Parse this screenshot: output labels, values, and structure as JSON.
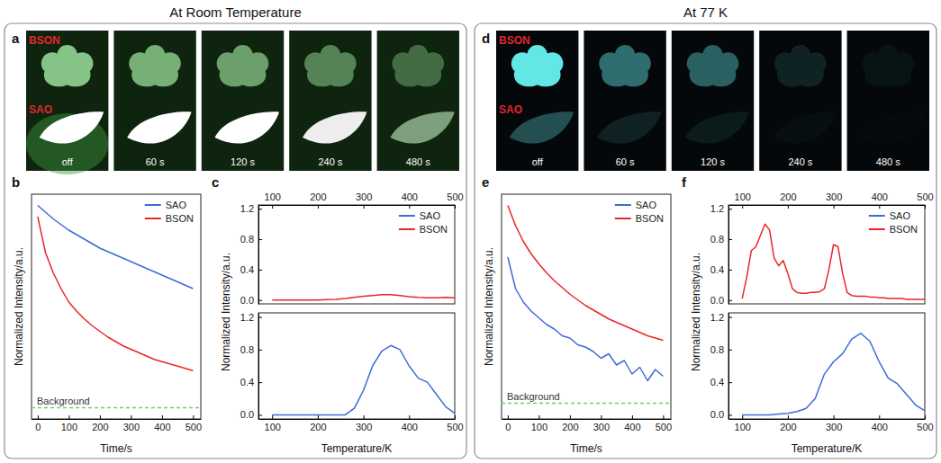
{
  "sections": [
    {
      "title": "At Room Temperature",
      "photo": {
        "panel": "a",
        "samples": [
          "BSON",
          "SAO"
        ],
        "frames": [
          "off",
          "60 s",
          "120 s",
          "240 s",
          "480 s"
        ]
      }
    },
    {
      "title": "At 77 K",
      "photo": {
        "panel": "d",
        "samples": [
          "BSON",
          "SAO"
        ],
        "frames": [
          "off",
          "60 s",
          "120 s",
          "240 s",
          "480 s"
        ]
      }
    }
  ],
  "chart_data": [
    {
      "panel": "b",
      "type": "line",
      "xlabel": "Time/s",
      "ylabel": "Normalized Intensity/a.u.",
      "xlim": [
        -20,
        525
      ],
      "xticks": [
        0,
        100,
        200,
        300,
        400,
        500
      ],
      "ylim": [
        0,
        1
      ],
      "tick_labels": "x",
      "legend": "upper right",
      "reference_lines": [
        {
          "label": "Background",
          "value": 0.05,
          "color": "#7cc576",
          "line_style": "dashed"
        }
      ],
      "series": [
        {
          "name": "SAO",
          "color": "#3d6bd8",
          "x": [
            0,
            25,
            50,
            75,
            100,
            125,
            150,
            175,
            200,
            225,
            250,
            275,
            300,
            325,
            350,
            375,
            400,
            425,
            450,
            475,
            500
          ],
          "values": [
            0.95,
            0.92,
            0.89,
            0.865,
            0.84,
            0.82,
            0.8,
            0.78,
            0.76,
            0.745,
            0.73,
            0.715,
            0.7,
            0.685,
            0.67,
            0.655,
            0.64,
            0.625,
            0.61,
            0.595,
            0.58
          ]
        },
        {
          "name": "BSON",
          "color": "#e8262b",
          "x": [
            0,
            25,
            50,
            75,
            100,
            125,
            150,
            175,
            200,
            225,
            250,
            275,
            300,
            325,
            350,
            375,
            400,
            425,
            450,
            475,
            500
          ],
          "values": [
            0.9,
            0.74,
            0.65,
            0.58,
            0.52,
            0.48,
            0.445,
            0.415,
            0.39,
            0.365,
            0.345,
            0.325,
            0.31,
            0.295,
            0.28,
            0.265,
            0.255,
            0.245,
            0.235,
            0.225,
            0.215
          ]
        }
      ]
    },
    {
      "panel": "c",
      "type": "line",
      "xlabel": "Temperature/K",
      "ylabel": "Normalized Intensity/a.u.",
      "xlim": [
        70,
        500
      ],
      "xticks": [
        100,
        200,
        300,
        400,
        500
      ],
      "ylim": [
        -0.05,
        1.25
      ],
      "yticks": [
        {
          "value": 0,
          "label": "0.0"
        },
        {
          "value": 0.4,
          "label": "0.4"
        },
        {
          "value": 0.8,
          "label": "0.8"
        },
        {
          "value": 1.2,
          "label": "1.2"
        }
      ],
      "y2lim": [
        -0.05,
        1.25
      ],
      "y2ticks": [
        {
          "value": 0,
          "label": "0.0"
        },
        {
          "value": 0.4,
          "label": "0.4"
        },
        {
          "value": 0.8,
          "label": "0.8"
        },
        {
          "value": 1.2,
          "label": "1.2"
        }
      ],
      "legend": "upper right",
      "series": [
        {
          "name": "SAO",
          "color": "#3d6bd8",
          "x": [
            100,
            120,
            140,
            160,
            180,
            200,
            220,
            240,
            260,
            280,
            300,
            320,
            340,
            360,
            380,
            400,
            420,
            440,
            460,
            480,
            500
          ],
          "values": [
            0,
            0,
            0,
            0,
            0,
            0,
            0,
            0,
            0,
            0.08,
            0.3,
            0.6,
            0.78,
            0.85,
            0.8,
            0.6,
            0.45,
            0.4,
            0.25,
            0.1,
            0.02
          ]
        },
        {
          "name": "BSON",
          "color": "#e8262b",
          "axis": "y2",
          "x": [
            100,
            120,
            140,
            160,
            180,
            200,
            220,
            240,
            260,
            280,
            300,
            320,
            340,
            360,
            380,
            400,
            420,
            440,
            460,
            480,
            500
          ],
          "values": [
            0,
            0,
            0,
            0,
            0,
            0,
            0.005,
            0.01,
            0.02,
            0.035,
            0.05,
            0.06,
            0.07,
            0.07,
            0.06,
            0.045,
            0.035,
            0.03,
            0.03,
            0.035,
            0.03
          ]
        }
      ]
    },
    {
      "panel": "e",
      "type": "line",
      "xlabel": "Time/s",
      "ylabel": "Normalized Intensity/a.u.",
      "xlim": [
        -20,
        525
      ],
      "xticks": [
        0,
        100,
        200,
        300,
        400,
        500
      ],
      "ylim": [
        0,
        1
      ],
      "tick_labels": "x",
      "legend": "upper right",
      "reference_lines": [
        {
          "label": "Background",
          "value": 0.07,
          "color": "#7cc576",
          "line_style": "dashed"
        }
      ],
      "series": [
        {
          "name": "SAO",
          "color": "#3d6bd8",
          "x": [
            0,
            25,
            50,
            75,
            100,
            125,
            150,
            175,
            200,
            225,
            250,
            275,
            300,
            325,
            350,
            375,
            400,
            425,
            450,
            475,
            500
          ],
          "values": [
            0.72,
            0.58,
            0.52,
            0.48,
            0.45,
            0.42,
            0.4,
            0.37,
            0.36,
            0.33,
            0.32,
            0.3,
            0.27,
            0.29,
            0.24,
            0.26,
            0.2,
            0.23,
            0.17,
            0.22,
            0.19
          ]
        },
        {
          "name": "BSON",
          "color": "#e8262b",
          "x": [
            0,
            25,
            50,
            75,
            100,
            125,
            150,
            175,
            200,
            225,
            250,
            275,
            300,
            325,
            350,
            375,
            400,
            425,
            450,
            475,
            500
          ],
          "values": [
            0.95,
            0.86,
            0.79,
            0.735,
            0.69,
            0.65,
            0.615,
            0.585,
            0.555,
            0.53,
            0.505,
            0.485,
            0.465,
            0.445,
            0.43,
            0.415,
            0.4,
            0.385,
            0.37,
            0.36,
            0.35
          ]
        }
      ]
    },
    {
      "panel": "f",
      "type": "line",
      "xlabel": "Temperature/K",
      "ylabel": "Normalized Intensity/a.u.",
      "xlim": [
        70,
        500
      ],
      "xticks": [
        100,
        200,
        300,
        400,
        500
      ],
      "ylim": [
        -0.05,
        1.25
      ],
      "yticks": [
        {
          "value": 0,
          "label": "0.0"
        },
        {
          "value": 0.4,
          "label": "0.4"
        },
        {
          "value": 0.8,
          "label": "0.8"
        },
        {
          "value": 1.2,
          "label": "1.2"
        }
      ],
      "y2lim": [
        -0.05,
        1.25
      ],
      "y2ticks": [
        {
          "value": 0,
          "label": "0.0"
        },
        {
          "value": 0.4,
          "label": "0.4"
        },
        {
          "value": 0.8,
          "label": "0.8"
        },
        {
          "value": 1.2,
          "label": "1.2"
        }
      ],
      "legend": "upper right",
      "series": [
        {
          "name": "SAO",
          "color": "#3d6bd8",
          "x": [
            100,
            120,
            140,
            160,
            180,
            200,
            220,
            240,
            260,
            280,
            300,
            320,
            340,
            360,
            380,
            400,
            420,
            440,
            460,
            480,
            500
          ],
          "values": [
            0,
            0,
            0,
            0,
            0.01,
            0.02,
            0.04,
            0.08,
            0.2,
            0.5,
            0.65,
            0.75,
            0.93,
            1.0,
            0.9,
            0.65,
            0.45,
            0.38,
            0.25,
            0.12,
            0.05
          ]
        },
        {
          "name": "BSON",
          "color": "#e8262b",
          "axis": "y2",
          "x": [
            100,
            110,
            120,
            130,
            140,
            150,
            160,
            170,
            180,
            190,
            200,
            210,
            220,
            230,
            240,
            250,
            260,
            270,
            280,
            290,
            300,
            310,
            320,
            330,
            340,
            350,
            360,
            370,
            380,
            390,
            400,
            410,
            420,
            430,
            440,
            450,
            460,
            470,
            480,
            490,
            500
          ],
          "values": [
            0.02,
            0.3,
            0.65,
            0.7,
            0.85,
            1.0,
            0.92,
            0.55,
            0.45,
            0.52,
            0.35,
            0.15,
            0.1,
            0.09,
            0.09,
            0.1,
            0.1,
            0.11,
            0.15,
            0.4,
            0.73,
            0.7,
            0.35,
            0.1,
            0.06,
            0.05,
            0.05,
            0.05,
            0.04,
            0.04,
            0.03,
            0.03,
            0.02,
            0.02,
            0.02,
            0.02,
            0.01,
            0.01,
            0.01,
            0.01,
            0.01
          ]
        }
      ]
    }
  ]
}
